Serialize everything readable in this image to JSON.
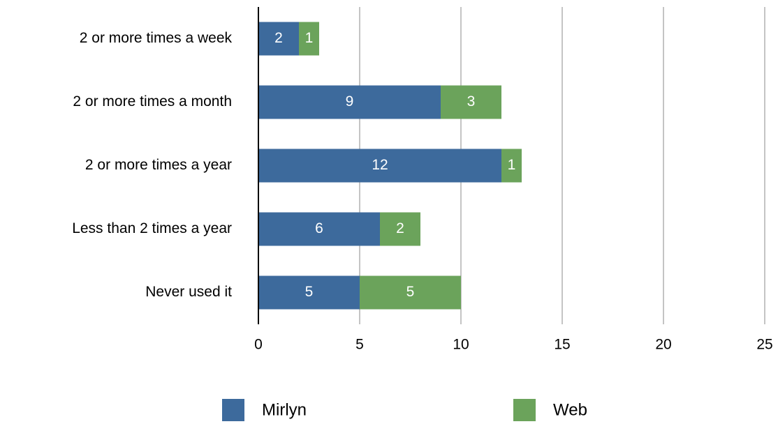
{
  "chart_data": {
    "type": "bar",
    "orientation": "horizontal",
    "stacked": true,
    "categories": [
      "2 or more times a week",
      "2 or more times a month",
      "2 or more times a year",
      "Less than 2 times a year",
      "Never used it"
    ],
    "series": [
      {
        "name": "Mirlyn",
        "color": "#3d6a9c",
        "values": [
          2,
          9,
          12,
          6,
          5
        ]
      },
      {
        "name": "Web",
        "color": "#6ba35b",
        "values": [
          1,
          3,
          1,
          2,
          5
        ]
      }
    ],
    "xlim": [
      0,
      25
    ],
    "xticks": [
      0,
      5,
      10,
      15,
      20,
      25
    ],
    "grid": true,
    "legend": "bottom"
  }
}
